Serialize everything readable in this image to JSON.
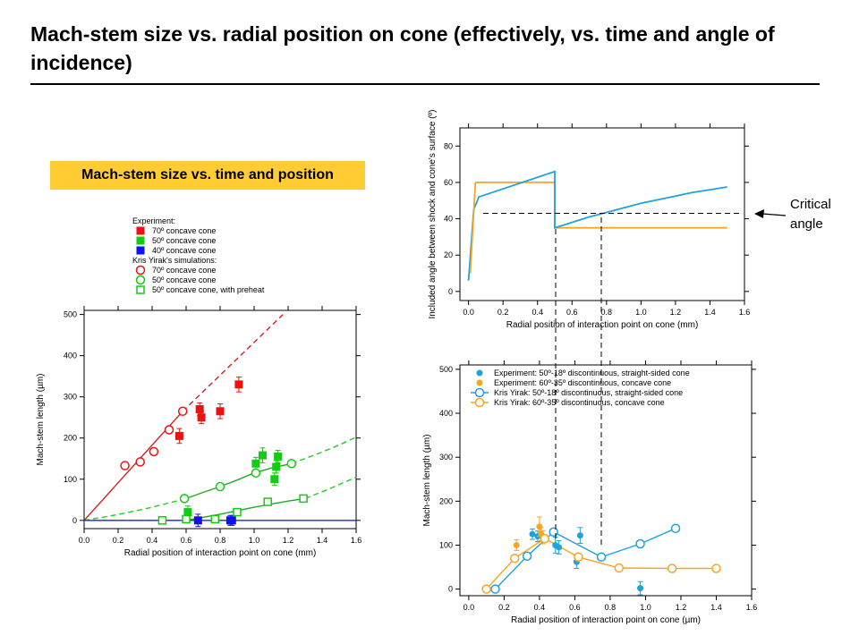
{
  "slide": {
    "title": "Mach-stem size vs. radial position on cone (effectively, vs. time and angle of incidence)",
    "subtitle": "Mach-stem size vs. time and position",
    "callout": "Critical angle",
    "accent_color": "#ffcc33"
  },
  "chart_data": [
    {
      "type": "scatter",
      "xlabel": "Radial position of interaction point on cone (mm)",
      "ylabel": "Mach-stem length (µm)",
      "xlim": [
        0,
        1.6
      ],
      "ylim": [
        -20,
        510
      ],
      "xticks": [
        "0.0",
        "0.2",
        "0.4",
        "0.6",
        "0.8",
        "1.0",
        "1.2",
        "1.4",
        "1.6"
      ],
      "yticks": [
        "0",
        "100",
        "200",
        "300",
        "400",
        "500"
      ],
      "legend_position": "top",
      "legend_sections": [
        "Experiment:",
        "Kris Yirak's simulations:"
      ],
      "series": [
        {
          "name": "70º concave cone",
          "group": "Experiment",
          "color": "#ee1111",
          "marker": "square-filled",
          "x": [
            0.56,
            0.68,
            0.69,
            0.8,
            0.91
          ],
          "y": [
            205,
            270,
            250,
            265,
            330
          ],
          "err": [
            18,
            15,
            15,
            18,
            18
          ]
        },
        {
          "name": "50º concave cone",
          "group": "Experiment",
          "color": "#11cc11",
          "marker": "square-filled",
          "x": [
            0.61,
            1.01,
            1.05,
            1.12,
            1.13,
            1.14
          ],
          "y": [
            20,
            138,
            158,
            100,
            130,
            155
          ],
          "err": [
            15,
            15,
            18,
            15,
            15,
            15
          ]
        },
        {
          "name": "40º concave cone",
          "group": "Experiment",
          "color": "#1111ee",
          "marker": "square-filled",
          "x": [
            0.67,
            0.86,
            0.87
          ],
          "y": [
            0,
            0,
            0
          ],
          "err": [
            15,
            12,
            12
          ]
        },
        {
          "name": "70º concave cone",
          "group": "Kris Yirak's simulations",
          "color": "#ee1111",
          "marker": "circle-open",
          "x": [
            0.24,
            0.33,
            0.41,
            0.5,
            0.58
          ],
          "y": [
            133,
            142,
            167,
            220,
            265
          ]
        },
        {
          "name": "50º concave cone",
          "group": "Kris Yirak's simulations",
          "color": "#11cc11",
          "marker": "circle-open",
          "x": [
            0.59,
            0.8,
            1.01,
            1.22
          ],
          "y": [
            53,
            82,
            115,
            138
          ]
        },
        {
          "name": "50º concave cone, with preheat",
          "group": "Kris Yirak's simulations",
          "color": "#11cc11",
          "marker": "square-open",
          "x": [
            0.46,
            0.6,
            0.77,
            0.9,
            1.08,
            1.29
          ],
          "y": [
            0,
            3,
            3,
            20,
            45,
            53
          ]
        }
      ],
      "fits": [
        {
          "color": "#cc2222",
          "style": "solid",
          "x": [
            0.0,
            0.58
          ],
          "y": [
            0,
            265
          ]
        },
        {
          "color": "#cc2222",
          "style": "dashed",
          "x": [
            0.58,
            1.17
          ],
          "y": [
            265,
            500
          ]
        },
        {
          "color": "#22aa22",
          "style": "solid",
          "x": [
            0.6,
            0.7,
            0.8,
            0.9,
            1.0,
            1.1,
            1.22
          ],
          "y": [
            53,
            68,
            82,
            98,
            115,
            127,
            138
          ]
        },
        {
          "color": "#22cc22",
          "style": "dashed",
          "x": [
            0.0,
            0.2,
            0.4,
            0.6
          ],
          "y": [
            0,
            14,
            32,
            53
          ]
        },
        {
          "color": "#22cc22",
          "style": "dashed",
          "x": [
            1.22,
            1.3,
            1.4,
            1.5,
            1.6
          ],
          "y": [
            138,
            150,
            166,
            183,
            202
          ]
        },
        {
          "color": "#22aa22",
          "style": "solid",
          "x": [
            0.6,
            0.8,
            1.0,
            1.2,
            1.3
          ],
          "y": [
            0,
            15,
            32,
            47,
            53
          ]
        },
        {
          "color": "#22cc22",
          "style": "dashed",
          "x": [
            0.0,
            0.3,
            0.6
          ],
          "y": [
            0,
            0,
            0
          ]
        },
        {
          "color": "#22cc22",
          "style": "dashed",
          "x": [
            1.3,
            1.45,
            1.6
          ],
          "y": [
            53,
            78,
            105
          ]
        },
        {
          "color": "#2222ee",
          "style": "solid",
          "x": [
            0.0,
            1.6
          ],
          "y": [
            0,
            0
          ]
        }
      ]
    },
    {
      "type": "line",
      "xlabel": "Radial position of interaction point on cone (mm)",
      "ylabel": "Included angle between shock and cone's surface (º)",
      "xlim": [
        -0.05,
        1.6
      ],
      "ylim": [
        -5,
        90
      ],
      "xticks": [
        "0.0",
        "0.2",
        "0.4",
        "0.6",
        "0.8",
        "1.0",
        "1.2",
        "1.4",
        "1.6"
      ],
      "yticks": [
        "0",
        "20",
        "40",
        "60",
        "80"
      ],
      "critical_angle": 43,
      "series": [
        {
          "color": "#f5a623",
          "x": [
            0.04,
            0.5,
            0.5,
            1.5
          ],
          "y": [
            60,
            60,
            35,
            35
          ]
        },
        {
          "color": "#1fa2dd",
          "x": [
            0.0,
            0.03,
            0.06,
            0.5,
            0.5,
            0.6,
            0.7,
            0.8,
            0.9,
            1.0,
            1.1,
            1.2,
            1.3,
            1.4,
            1.5
          ],
          "y": [
            6,
            45,
            52,
            66,
            35,
            38,
            41,
            43.5,
            46,
            48.5,
            50.5,
            52.5,
            54.5,
            56,
            57.5
          ]
        },
        {
          "color": "#f5a623",
          "x": [
            0.01,
            0.04
          ],
          "y": [
            10,
            60
          ]
        }
      ]
    },
    {
      "type": "scatter",
      "xlabel": "Radial position of interaction point on cone (µm)",
      "ylabel": "Mach-stem length (µm)",
      "xlim": [
        -0.05,
        1.6
      ],
      "ylim": [
        -15,
        510
      ],
      "xticks": [
        "0.0",
        "0.2",
        "0.4",
        "0.6",
        "0.8",
        "1.0",
        "1.2",
        "1.4",
        "1.6"
      ],
      "yticks": [
        "0",
        "100",
        "200",
        "300",
        "400",
        "500"
      ],
      "legend_position": "top-left",
      "series": [
        {
          "name": "Experiment: 50º-18º discontinuous, straight-sided cone",
          "color": "#1fa2dd",
          "marker": "dot",
          "x": [
            0.36,
            0.39,
            0.49,
            0.51,
            0.61,
            0.63,
            0.97
          ],
          "y": [
            125,
            120,
            100,
            95,
            62,
            122,
            2
          ],
          "err": [
            12,
            12,
            18,
            15,
            15,
            18,
            15
          ]
        },
        {
          "name": "Experiment: 60º-35º discontinuous, concave cone",
          "color": "#f5a623",
          "marker": "dot",
          "x": [
            0.27,
            0.4,
            0.41,
            0.42
          ],
          "y": [
            100,
            142,
            125,
            118
          ],
          "err": [
            12,
            22,
            15,
            15
          ]
        },
        {
          "name": "Kris Yirak: 50º-18º discontinuous, straight-sided cone",
          "color": "#1fa2dd",
          "marker": "circle-line",
          "x": [
            0.15,
            0.33,
            0.48,
            0.75,
            0.97,
            1.17
          ],
          "y": [
            0,
            75,
            130,
            73,
            103,
            138
          ]
        },
        {
          "name": "Kris Yirak: 60º-35º discontinuous, concave cone",
          "color": "#f5a623",
          "marker": "circle-line",
          "x": [
            0.1,
            0.26,
            0.43,
            0.62,
            0.85,
            1.15,
            1.4
          ],
          "y": [
            0,
            70,
            115,
            73,
            48,
            47,
            47
          ]
        }
      ]
    }
  ]
}
